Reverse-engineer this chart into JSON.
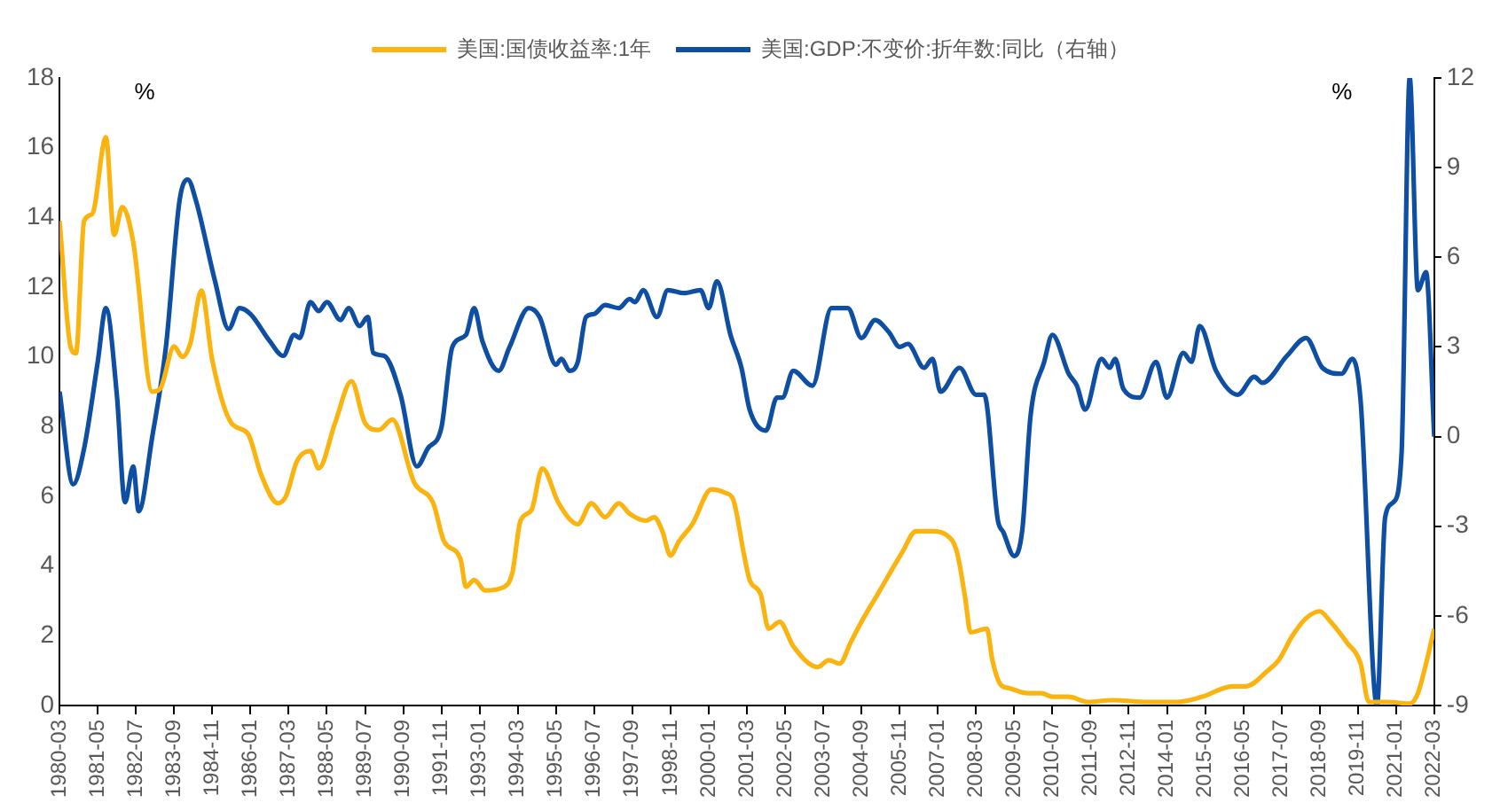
{
  "chart_data": {
    "type": "line",
    "legend": "top",
    "grid": false,
    "xlim": [
      "1980-03",
      "2022-03"
    ],
    "xticks": [
      "1980-03",
      "1981-05",
      "1982-07",
      "1983-09",
      "1984-11",
      "1986-01",
      "1987-03",
      "1988-05",
      "1989-07",
      "1990-09",
      "1991-11",
      "1993-01",
      "1994-03",
      "1995-05",
      "1996-07",
      "1997-09",
      "1998-11",
      "2000-01",
      "2001-03",
      "2002-05",
      "2003-07",
      "2004-09",
      "2005-11",
      "2007-01",
      "2008-03",
      "2009-05",
      "2010-07",
      "2011-09",
      "2012-11",
      "2014-01",
      "2015-03",
      "2016-05",
      "2017-07",
      "2018-09",
      "2019-11",
      "2021-01",
      "2022-03"
    ],
    "ylim": [
      0,
      18
    ],
    "yticks": [
      0,
      2,
      4,
      6,
      8,
      10,
      12,
      14,
      16,
      18
    ],
    "y2lim": [
      -9,
      12
    ],
    "y2ticks": [
      -9,
      -6,
      -3,
      0,
      3,
      6,
      9,
      12
    ],
    "annotations": [
      "%",
      "%"
    ],
    "series": [
      {
        "name": "美国:国债收益率:1年",
        "color": "#fbb40f",
        "x": [
          "1980-03",
          "1980-07",
          "1980-09",
          "1980-12",
          "1981-03",
          "1981-08",
          "1981-11",
          "1982-02",
          "1982-06",
          "1983-01",
          "1983-04",
          "1983-09",
          "1983-12",
          "1984-03",
          "1984-07",
          "1984-11",
          "1985-06",
          "1985-12",
          "1986-05",
          "1986-11",
          "1987-02",
          "1987-06",
          "1987-11",
          "1988-02",
          "1988-08",
          "1989-02",
          "1989-07",
          "1989-12",
          "1990-05",
          "1991-01",
          "1991-08",
          "1991-12",
          "1992-06",
          "1992-08",
          "1992-11",
          "1993-03",
          "1993-10",
          "1994-01",
          "1994-04",
          "1994-08",
          "1994-12",
          "1995-06",
          "1996-01",
          "1996-06",
          "1996-11",
          "1997-04",
          "1997-08",
          "1998-02",
          "1998-05",
          "1998-08",
          "1998-11",
          "1999-02",
          "1999-07",
          "2000-02",
          "2000-07",
          "2000-10",
          "2001-02",
          "2001-04",
          "2001-08",
          "2001-11",
          "2002-03",
          "2002-08",
          "2003-05",
          "2003-09",
          "2004-01",
          "2004-05",
          "2004-09",
          "2005-03",
          "2005-12",
          "2006-05",
          "2006-11",
          "2007-04",
          "2007-08",
          "2007-11",
          "2008-01",
          "2008-07",
          "2008-09",
          "2008-12",
          "2009-03",
          "2009-10",
          "2010-03",
          "2010-07",
          "2011-01",
          "2011-08",
          "2012-05",
          "2013-06",
          "2014-05",
          "2015-02",
          "2016-01",
          "2016-06",
          "2017-02",
          "2017-06",
          "2017-11",
          "2018-04",
          "2018-09",
          "2019-01",
          "2019-07",
          "2019-12",
          "2020-03",
          "2020-10",
          "2021-06",
          "2021-09",
          "2021-12",
          "2022-03"
        ],
        "values": [
          13.9,
          10.3,
          10.1,
          13.9,
          14.1,
          16.3,
          13.5,
          14.3,
          13.3,
          9.0,
          9.1,
          10.3,
          10.0,
          10.4,
          11.9,
          9.9,
          8.1,
          7.8,
          6.6,
          5.8,
          6.0,
          7.0,
          7.3,
          6.8,
          8.1,
          9.3,
          8.1,
          7.9,
          8.2,
          6.4,
          5.8,
          4.7,
          4.2,
          3.4,
          3.6,
          3.3,
          3.4,
          3.8,
          5.3,
          5.6,
          6.8,
          5.8,
          5.2,
          5.8,
          5.4,
          5.8,
          5.5,
          5.3,
          5.4,
          5.0,
          4.3,
          4.7,
          5.2,
          6.2,
          6.1,
          5.9,
          4.3,
          3.6,
          3.2,
          2.2,
          2.4,
          1.7,
          1.1,
          1.3,
          1.2,
          1.8,
          2.4,
          3.2,
          4.4,
          5.0,
          5.0,
          4.9,
          4.4,
          3.1,
          2.1,
          2.2,
          1.3,
          0.6,
          0.5,
          0.35,
          0.35,
          0.25,
          0.25,
          0.1,
          0.15,
          0.1,
          0.1,
          0.25,
          0.55,
          0.55,
          1.0,
          1.3,
          2.0,
          2.5,
          2.7,
          2.4,
          1.8,
          1.2,
          0.1,
          0.1,
          0.05,
          0.35,
          1.2,
          2.2
        ]
      },
      {
        "name": "美国:GDP:不变价:折年数:同比（右轴）",
        "color": "#0e4ea3",
        "axis": "y2",
        "x": [
          "1980-03",
          "1980-08",
          "1980-12",
          "1981-05",
          "1981-08",
          "1981-12",
          "1982-03",
          "1982-06",
          "1982-08",
          "1983-01",
          "1983-06",
          "1983-11",
          "1984-02",
          "1984-05",
          "1984-12",
          "1985-05",
          "1985-09",
          "1986-01",
          "1986-08",
          "1987-01",
          "1987-05",
          "1987-07",
          "1987-11",
          "1988-02",
          "1988-05",
          "1988-10",
          "1989-01",
          "1989-05",
          "1989-08",
          "1989-10",
          "1990-02",
          "1990-08",
          "1991-02",
          "1991-06",
          "1991-11",
          "1992-03",
          "1992-08",
          "1992-11",
          "1993-02",
          "1993-08",
          "1993-12",
          "1994-07",
          "1994-11",
          "1995-05",
          "1995-07",
          "1995-10",
          "1996-01",
          "1996-04",
          "1996-07",
          "1996-11",
          "1997-04",
          "1997-08",
          "1997-10",
          "1998-01",
          "1998-06",
          "1998-10",
          "1999-04",
          "1999-10",
          "2000-01",
          "2000-04",
          "2000-09",
          "2001-01",
          "2001-04",
          "2001-10",
          "2002-02",
          "2002-04",
          "2002-08",
          "2003-03",
          "2003-10",
          "2004-04",
          "2004-09",
          "2005-02",
          "2005-07",
          "2005-11",
          "2006-02",
          "2006-08",
          "2006-11",
          "2007-02",
          "2007-09",
          "2008-03",
          "2008-06",
          "2008-11",
          "2009-01",
          "2009-05",
          "2009-08",
          "2009-11",
          "2010-04",
          "2010-07",
          "2011-01",
          "2011-04",
          "2011-07",
          "2012-01",
          "2012-04",
          "2012-06",
          "2012-09",
          "2013-03",
          "2013-09",
          "2014-01",
          "2014-07",
          "2014-10",
          "2015-01",
          "2015-07",
          "2016-03",
          "2016-09",
          "2016-12",
          "2017-09",
          "2018-04",
          "2018-10",
          "2019-05",
          "2019-09",
          "2019-12",
          "2020-06",
          "2020-09",
          "2020-12",
          "2021-03",
          "2021-06",
          "2021-09",
          "2021-12",
          "2022-03"
        ],
        "values": [
          1.5,
          -1.6,
          -0.4,
          2.5,
          4.3,
          1.4,
          -2.2,
          -1.0,
          -2.5,
          0.0,
          3.0,
          7.9,
          8.6,
          7.9,
          5.2,
          3.6,
          4.3,
          4.1,
          3.2,
          2.7,
          3.4,
          3.3,
          4.5,
          4.2,
          4.5,
          3.9,
          4.3,
          3.7,
          4.0,
          2.8,
          2.7,
          1.4,
          -1.0,
          -0.4,
          0.3,
          3.0,
          3.4,
          4.3,
          3.2,
          2.2,
          3.0,
          4.3,
          4.0,
          2.4,
          2.6,
          2.2,
          2.5,
          4.0,
          4.1,
          4.4,
          4.3,
          4.6,
          4.5,
          4.9,
          4.0,
          4.9,
          4.8,
          4.9,
          4.3,
          5.2,
          3.4,
          2.3,
          0.9,
          0.2,
          1.3,
          1.3,
          2.2,
          1.7,
          4.3,
          4.3,
          3.3,
          3.9,
          3.5,
          3.0,
          3.1,
          2.3,
          2.6,
          1.5,
          2.3,
          1.4,
          1.4,
          -2.8,
          -3.2,
          -4.0,
          -3.1,
          0.7,
          2.5,
          3.4,
          2.1,
          1.7,
          0.9,
          2.6,
          2.3,
          2.6,
          1.6,
          1.3,
          2.5,
          1.3,
          2.8,
          2.5,
          3.7,
          2.2,
          1.4,
          2.0,
          1.8,
          2.7,
          3.3,
          2.3,
          2.1,
          2.6,
          1.2,
          -9.0,
          -2.7,
          -2.2,
          -0.6,
          12.0,
          4.9,
          5.5,
          0.0
        ]
      }
    ]
  }
}
